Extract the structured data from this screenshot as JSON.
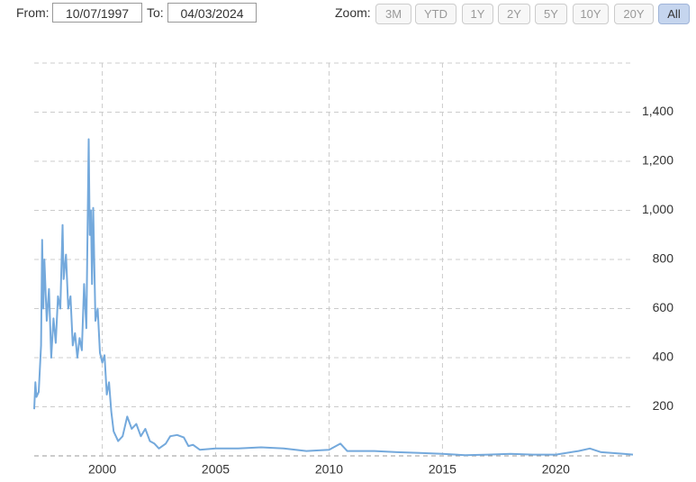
{
  "controls": {
    "from_label": "From:",
    "from_date": "10/07/1997",
    "to_label": "To:",
    "to_date": "04/03/2024",
    "zoom_label": "Zoom:",
    "zoom_buttons": [
      "3M",
      "YTD",
      "1Y",
      "2Y",
      "5Y",
      "10Y",
      "20Y",
      "All"
    ],
    "active_zoom": "All"
  },
  "chart_data": {
    "type": "line",
    "color": "#74a9dc",
    "grid": true,
    "x": [
      1997.0,
      1997.05,
      1997.1,
      1997.2,
      1997.3,
      1997.35,
      1997.4,
      1997.45,
      1997.55,
      1997.65,
      1997.75,
      1997.85,
      1997.95,
      1998.05,
      1998.15,
      1998.25,
      1998.3,
      1998.4,
      1998.5,
      1998.6,
      1998.7,
      1998.8,
      1998.9,
      1999.0,
      1999.1,
      1999.2,
      1999.3,
      1999.4,
      1999.45,
      1999.5,
      1999.55,
      1999.6,
      1999.7,
      1999.8,
      1999.9,
      2000.0,
      2000.1,
      2000.2,
      2000.3,
      2000.4,
      2000.5,
      2000.7,
      2000.9,
      2001.1,
      2001.3,
      2001.5,
      2001.7,
      2001.9,
      2002.1,
      2002.3,
      2002.5,
      2002.8,
      2003.0,
      2003.3,
      2003.6,
      2003.8,
      2004.0,
      2004.3,
      2005.0,
      2006.0,
      2007.0,
      2008.0,
      2009.0,
      2010.0,
      2010.5,
      2010.8,
      2012.0,
      2013.0,
      2014.0,
      2015.0,
      2016.0,
      2017.0,
      2018.0,
      2019.0,
      2020.0,
      2021.0,
      2021.5,
      2022.0,
      2023.0,
      2023.4
    ],
    "values": [
      190,
      300,
      240,
      260,
      450,
      880,
      600,
      800,
      550,
      680,
      400,
      560,
      460,
      650,
      600,
      940,
      720,
      820,
      600,
      650,
      450,
      500,
      400,
      480,
      430,
      700,
      520,
      1290,
      900,
      1000,
      700,
      1010,
      550,
      600,
      420,
      380,
      410,
      250,
      300,
      180,
      100,
      60,
      80,
      160,
      110,
      130,
      80,
      110,
      60,
      50,
      30,
      50,
      80,
      85,
      75,
      40,
      45,
      25,
      30,
      30,
      35,
      30,
      20,
      25,
      50,
      20,
      20,
      15,
      12,
      8,
      3,
      5,
      8,
      5,
      5,
      20,
      30,
      15,
      8,
      5
    ],
    "xlim": [
      1997.0,
      2023.4
    ],
    "xticks": [
      2000,
      2005,
      2010,
      2015,
      2020
    ],
    "ylim": [
      0,
      1600
    ],
    "yticks": [
      200,
      400,
      600,
      800,
      {
        "value": 1000,
        "label": "1,000"
      },
      {
        "value": 1200,
        "label": "1,200"
      },
      {
        "value": 1400,
        "label": "1,400"
      }
    ]
  }
}
